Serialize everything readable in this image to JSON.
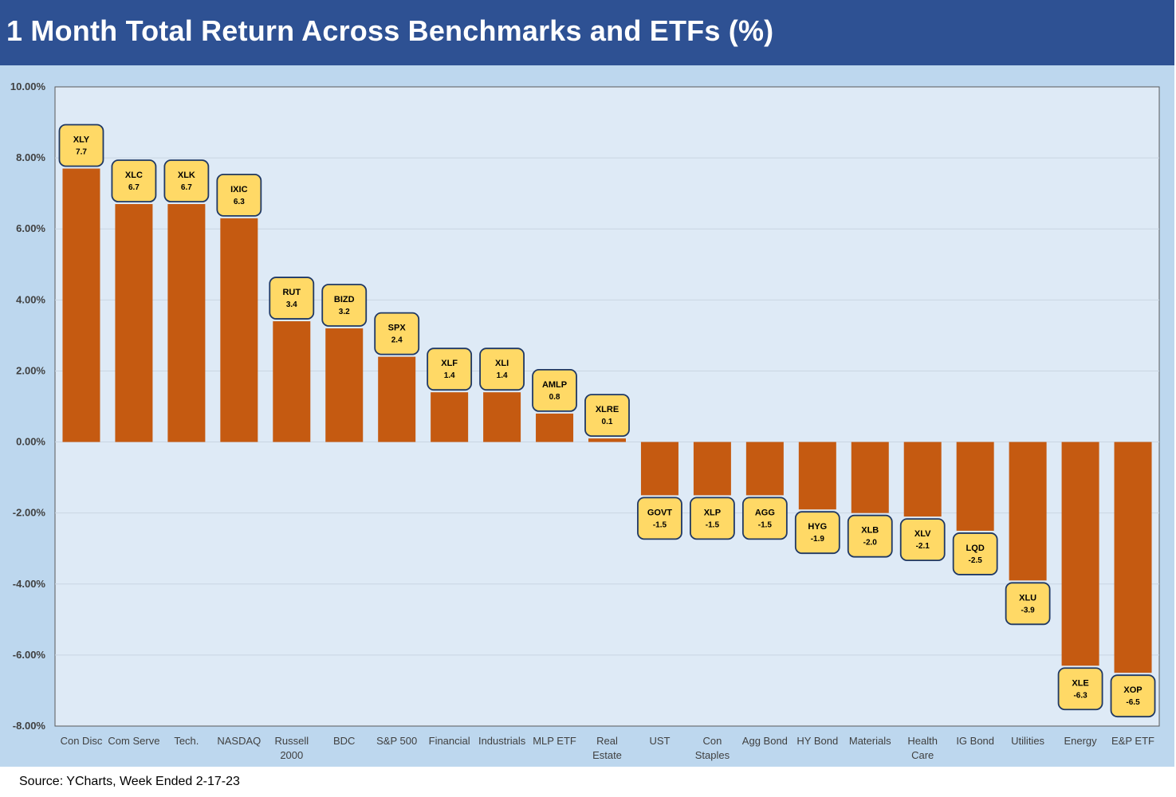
{
  "title": "1 Month Total Return Across Benchmarks and ETFs (%)",
  "source": "Source: YCharts, Week Ended 2-17-23",
  "colors": {
    "title_bg": "#2e5193",
    "chart_bg": "#bdd7ee",
    "plot_bg": "#deeaf6",
    "bar": "#c55a11",
    "label_fill": "#ffd966",
    "label_border": "#1f3864"
  },
  "chart_data": {
    "type": "bar",
    "ylim": [
      -8,
      10
    ],
    "yticks": [
      10,
      8,
      6,
      4,
      2,
      0,
      -2,
      -4,
      -6,
      -8
    ],
    "ytick_labels": [
      "10.00%",
      "8.00%",
      "6.00%",
      "4.00%",
      "2.00%",
      "0.00%",
      "-2.00%",
      "-4.00%",
      "-6.00%",
      "-8.00%"
    ],
    "grid": true,
    "categories": [
      [
        "Con Disc"
      ],
      [
        "Com Serve"
      ],
      [
        "Tech."
      ],
      [
        "NASDAQ"
      ],
      [
        "Russell",
        "2000"
      ],
      [
        "BDC"
      ],
      [
        "S&P 500"
      ],
      [
        "Financial"
      ],
      [
        "Industrials"
      ],
      [
        "MLP ETF"
      ],
      [
        "Real",
        "Estate"
      ],
      [
        "UST"
      ],
      [
        "Con",
        "Staples"
      ],
      [
        "Agg Bond"
      ],
      [
        "HY Bond"
      ],
      [
        "Materials"
      ],
      [
        "Health",
        "Care"
      ],
      [
        "IG Bond"
      ],
      [
        "Utilities"
      ],
      [
        "Energy"
      ],
      [
        "E&P ETF"
      ]
    ],
    "tickers": [
      "XLY",
      "XLC",
      "XLK",
      "IXIC",
      "RUT",
      "BIZD",
      "SPX",
      "XLF",
      "XLI",
      "AMLP",
      "XLRE",
      "GOVT",
      "XLP",
      "AGG",
      "HYG",
      "XLB",
      "XLV",
      "LQD",
      "XLU",
      "XLE",
      "XOP"
    ],
    "values": [
      7.7,
      6.7,
      6.7,
      6.3,
      3.4,
      3.2,
      2.4,
      1.4,
      1.4,
      0.8,
      0.1,
      -1.5,
      -1.5,
      -1.5,
      -1.9,
      -2.0,
      -2.1,
      -2.5,
      -3.9,
      -6.3,
      -6.5
    ],
    "value_labels": [
      "7.7",
      "6.7",
      "6.7",
      "6.3",
      "3.4",
      "3.2",
      "2.4",
      "1.4",
      "1.4",
      "0.8",
      "0.1",
      "-1.5",
      "-1.5",
      "-1.5",
      "-1.9",
      "-2.0",
      "-2.1",
      "-2.5",
      "-3.9",
      "-6.3",
      "-6.5"
    ]
  }
}
